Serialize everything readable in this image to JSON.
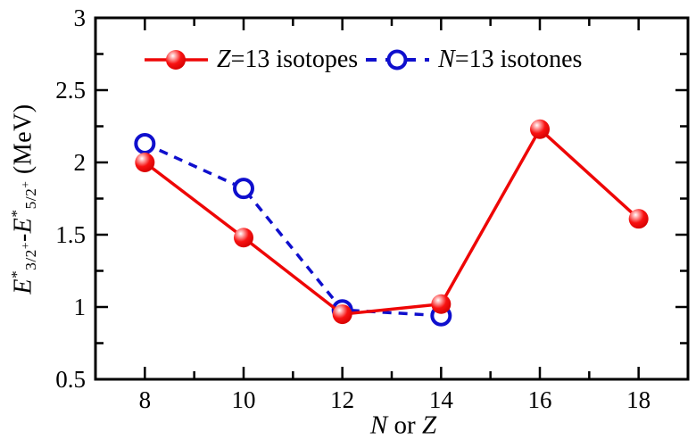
{
  "colors": {
    "z13": "#ee0606",
    "n13": "#0f0fcd",
    "axis": "#000000",
    "background": "#ffffff"
  },
  "legend": {
    "items": [
      {
        "var": "Z",
        "rest": "=13 isotopes",
        "series": "z13"
      },
      {
        "var": "N",
        "rest": "=13 isotones",
        "series": "n13"
      }
    ]
  },
  "axes": {
    "x": {
      "a": "N",
      "mid": " or ",
      "b": "Z"
    },
    "y": {
      "e1": "E",
      "star1": "*",
      "sub1": "3/2",
      "plus1": "+",
      "minus": "-",
      "e2": "E",
      "star2": "*",
      "sub2": "5/2",
      "plus2": "+",
      "units": " (MeV)"
    }
  },
  "chart_data": {
    "type": "line",
    "title": "",
    "xlabel": "N or Z",
    "ylabel": "E*_{3/2+} - E*_{5/2+} (MeV)",
    "xlim": [
      7,
      19
    ],
    "ylim": [
      0.5,
      3
    ],
    "x_major_ticks": [
      8,
      10,
      12,
      14,
      16,
      18
    ],
    "x_minor_ticks": [
      9,
      11,
      13,
      15,
      17
    ],
    "y_major_ticks": [
      0.5,
      1,
      1.5,
      2,
      2.5,
      3
    ],
    "y_minor_ticks": [
      0.75,
      1.25,
      1.75,
      2.25,
      2.75
    ],
    "grid": false,
    "legend_position": "top-inside",
    "series": [
      {
        "name": "Z=13 isotopes",
        "color": "#ee0606",
        "line": "solid",
        "marker": "filled-ball",
        "marker_radius": 11,
        "x": [
          8,
          10,
          12,
          14,
          16,
          18
        ],
        "y": [
          2.0,
          1.48,
          0.95,
          1.02,
          2.23,
          1.61
        ]
      },
      {
        "name": "N=13 isotones",
        "color": "#0f0fcd",
        "line": "dashed",
        "marker": "open-circle",
        "marker_radius": 10,
        "x": [
          8,
          10,
          12,
          14
        ],
        "y": [
          2.13,
          1.82,
          0.98,
          0.94
        ]
      }
    ]
  }
}
